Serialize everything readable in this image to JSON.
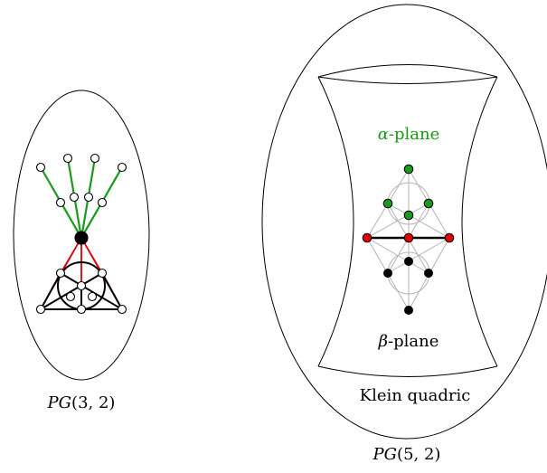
{
  "left_figure": {
    "label": {
      "name": "PG",
      "args": "(3, 2)"
    }
  },
  "right_figure": {
    "label": {
      "name": "PG",
      "args": "(5, 2)"
    },
    "quadric_label": "Klein quadric",
    "alpha_plane": {
      "symbol": "α",
      "suffix": "-plane"
    },
    "beta_plane": {
      "symbol": "β",
      "suffix": "-plane"
    }
  },
  "colors": {
    "green": "#1a9a1a",
    "red": "#e00000",
    "black": "#000000",
    "grey": "#b4b4b4",
    "alpha_label": "#1a9a1a"
  }
}
